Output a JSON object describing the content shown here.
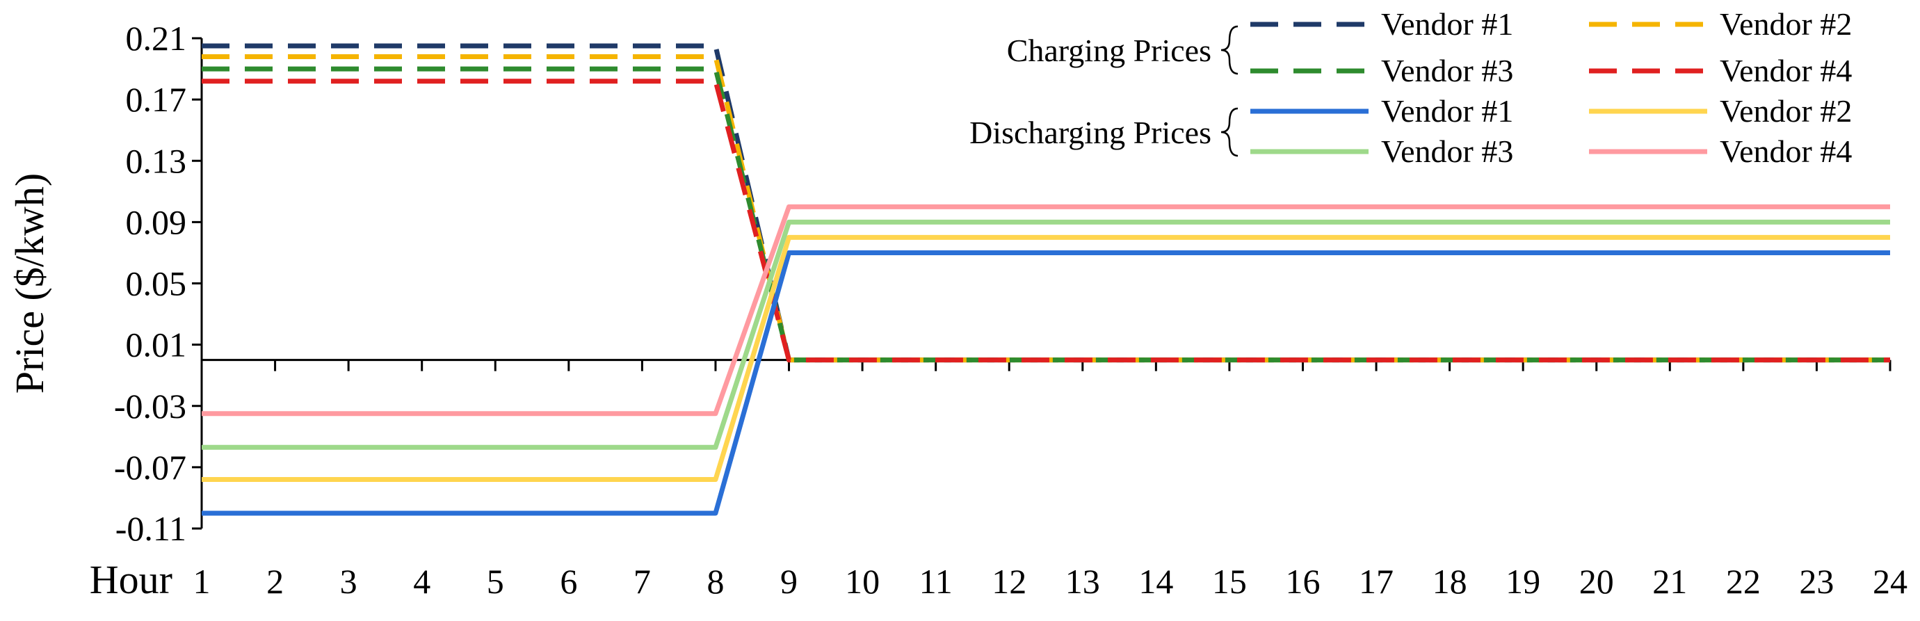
{
  "chart_data": {
    "type": "line",
    "ylabel": "Price ($/kwh)",
    "xlabel": "Hour",
    "x": [
      1,
      2,
      3,
      4,
      5,
      6,
      7,
      8,
      9,
      10,
      11,
      12,
      13,
      14,
      15,
      16,
      17,
      18,
      19,
      20,
      21,
      22,
      23,
      24
    ],
    "xlim": [
      1,
      24
    ],
    "ylim": [
      -0.11,
      0.21
    ],
    "yticks": [
      0.21,
      0.17,
      0.13,
      0.09,
      0.05,
      0.01,
      -0.03,
      -0.07,
      -0.11
    ],
    "ytick_labels": [
      "0.21",
      "0.17",
      "0.13",
      "0.09",
      "0.05",
      "0.01",
      "-0.03",
      "-0.07",
      "-0.11"
    ],
    "zero_line": 0,
    "grid": false,
    "legend_position": "top-right",
    "legend_groups": [
      {
        "label": "Charging Prices",
        "style": "dashed"
      },
      {
        "label": "Discharging Prices",
        "style": "solid"
      }
    ],
    "series": [
      {
        "name": "Vendor #1",
        "group": "Charging Prices",
        "style": "dashed",
        "color": "#1f3a68",
        "values": [
          0.205,
          0.205,
          0.205,
          0.205,
          0.205,
          0.205,
          0.205,
          0.205,
          0,
          0,
          0,
          0,
          0,
          0,
          0,
          0,
          0,
          0,
          0,
          0,
          0,
          0,
          0,
          0
        ]
      },
      {
        "name": "Vendor #2",
        "group": "Charging Prices",
        "style": "dashed",
        "color": "#f5b400",
        "values": [
          0.198,
          0.198,
          0.198,
          0.198,
          0.198,
          0.198,
          0.198,
          0.198,
          0,
          0,
          0,
          0,
          0,
          0,
          0,
          0,
          0,
          0,
          0,
          0,
          0,
          0,
          0,
          0
        ]
      },
      {
        "name": "Vendor #3",
        "group": "Charging Prices",
        "style": "dashed",
        "color": "#2e8b2e",
        "values": [
          0.19,
          0.19,
          0.19,
          0.19,
          0.19,
          0.19,
          0.19,
          0.19,
          0,
          0,
          0,
          0,
          0,
          0,
          0,
          0,
          0,
          0,
          0,
          0,
          0,
          0,
          0,
          0
        ]
      },
      {
        "name": "Vendor #4",
        "group": "Charging Prices",
        "style": "dashed",
        "color": "#e02020",
        "values": [
          0.182,
          0.182,
          0.182,
          0.182,
          0.182,
          0.182,
          0.182,
          0.182,
          0,
          0,
          0,
          0,
          0,
          0,
          0,
          0,
          0,
          0,
          0,
          0,
          0,
          0,
          0,
          0
        ]
      },
      {
        "name": "Vendor #1",
        "group": "Discharging Prices",
        "style": "solid",
        "color": "#2a6fd6",
        "values": [
          -0.1,
          -0.1,
          -0.1,
          -0.1,
          -0.1,
          -0.1,
          -0.1,
          -0.1,
          0.07,
          0.07,
          0.07,
          0.07,
          0.07,
          0.07,
          0.07,
          0.07,
          0.07,
          0.07,
          0.07,
          0.07,
          0.07,
          0.07,
          0.07,
          0.07
        ]
      },
      {
        "name": "Vendor #2",
        "group": "Discharging Prices",
        "style": "solid",
        "color": "#ffd54f",
        "values": [
          -0.078,
          -0.078,
          -0.078,
          -0.078,
          -0.078,
          -0.078,
          -0.078,
          -0.078,
          0.08,
          0.08,
          0.08,
          0.08,
          0.08,
          0.08,
          0.08,
          0.08,
          0.08,
          0.08,
          0.08,
          0.08,
          0.08,
          0.08,
          0.08,
          0.08
        ]
      },
      {
        "name": "Vendor #3",
        "group": "Discharging Prices",
        "style": "solid",
        "color": "#9ed98a",
        "values": [
          -0.057,
          -0.057,
          -0.057,
          -0.057,
          -0.057,
          -0.057,
          -0.057,
          -0.057,
          0.09,
          0.09,
          0.09,
          0.09,
          0.09,
          0.09,
          0.09,
          0.09,
          0.09,
          0.09,
          0.09,
          0.09,
          0.09,
          0.09,
          0.09,
          0.09
        ]
      },
      {
        "name": "Vendor #4",
        "group": "Discharging Prices",
        "style": "solid",
        "color": "#ff9aa0",
        "values": [
          -0.035,
          -0.035,
          -0.035,
          -0.035,
          -0.035,
          -0.035,
          -0.035,
          -0.035,
          0.1,
          0.1,
          0.1,
          0.1,
          0.1,
          0.1,
          0.1,
          0.1,
          0.1,
          0.1,
          0.1,
          0.1,
          0.1,
          0.1,
          0.1,
          0.1
        ]
      }
    ]
  }
}
